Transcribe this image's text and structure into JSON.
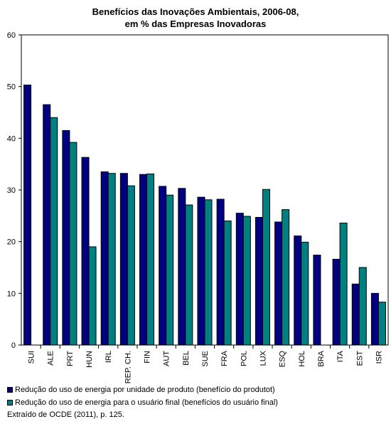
{
  "chart_data": {
    "type": "bar",
    "title": [
      "Benefícios das Inovações Ambientais, 2006-08,",
      "em % das Empresas Inovadoras"
    ],
    "categories": [
      "SUI",
      "ALE",
      "PRT",
      "HUN",
      "IRL",
      "REP. CH.",
      "FIN",
      "AUT",
      "BEL",
      "SUE",
      "FRA",
      "POL",
      "LUX",
      "ESQ",
      "HOL",
      "BRA",
      "ITA",
      "EST",
      "ISR"
    ],
    "series": [
      {
        "name": "Redução do uso de energia por unidade de produto (benefício do produtot)",
        "color": "#000080",
        "values": [
          50.3,
          46.5,
          41.5,
          36.3,
          33.5,
          33.2,
          33.0,
          30.7,
          30.3,
          28.6,
          28.2,
          25.5,
          24.7,
          23.8,
          21.1,
          17.4,
          16.6,
          11.8,
          10.0
        ]
      },
      {
        "name": "Redução do uso de energia para o usuário final (benefícios do usuário final)",
        "color": "#008080",
        "values": [
          null,
          44.0,
          39.2,
          19.0,
          33.2,
          30.8,
          33.1,
          29.0,
          27.1,
          28.1,
          24.0,
          24.9,
          30.1,
          26.2,
          19.9,
          null,
          23.6,
          15.0,
          8.3
        ]
      }
    ],
    "ylim": [
      0,
      60
    ],
    "yticks": [
      0,
      10,
      20,
      30,
      40,
      50,
      60
    ],
    "grid": false
  },
  "legend": {
    "item1": "Redução do uso de energia por unidade de produto (benefício do produtot)",
    "item2": "Redução do uso de energia para o usuário final (benefícios do usuário final)"
  },
  "source": "Extraído de OCDE (2011), p. 125."
}
